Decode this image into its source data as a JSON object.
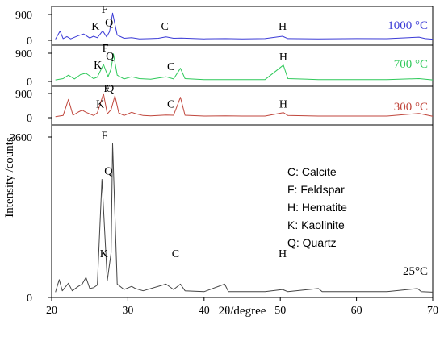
{
  "chart_data": {
    "type": "line",
    "xlabel": "2θ/degree",
    "ylabel": "Intensity /counts",
    "xlim": [
      20,
      70
    ],
    "xticks": [
      "20",
      "30",
      "40",
      "50",
      "60",
      "70"
    ],
    "panels": [
      {
        "name": "1000 °C",
        "color": "#3b3bd6",
        "ylim": [
          0,
          900
        ],
        "yticks": [
          "0",
          "900"
        ],
        "baseline": 35,
        "x": [
          20.5,
          21.1,
          21.5,
          22.0,
          22.5,
          23.5,
          24.2,
          25.0,
          25.5,
          26.0,
          26.7,
          27.2,
          27.6,
          28.0,
          28.6,
          29.5,
          30.5,
          31.5,
          33.0,
          34.0,
          35.0,
          36.0,
          37.0,
          40.0,
          42.8,
          45.0,
          48.0,
          50.3,
          51.0,
          55.0,
          60.0,
          64.0,
          68.2,
          69.0,
          70.0
        ],
        "y": [
          40,
          320,
          60,
          130,
          50,
          160,
          220,
          80,
          140,
          90,
          330,
          120,
          300,
          950,
          180,
          70,
          90,
          50,
          60,
          70,
          120,
          70,
          80,
          50,
          60,
          50,
          60,
          140,
          60,
          50,
          60,
          55,
          110,
          60,
          40
        ],
        "peaks": [
          {
            "label": "Q",
            "x": 26.7
          },
          {
            "label": "F",
            "x": 28.0
          },
          {
            "label": "K",
            "x": 24.7
          },
          {
            "label": "C",
            "x": 34.0
          },
          {
            "label": "H",
            "x": 50.3
          }
        ]
      },
      {
        "name": "700 °C",
        "color": "#2fc95a",
        "ylim": [
          0,
          900
        ],
        "yticks": [
          "0",
          "900"
        ],
        "baseline": 35,
        "x": [
          20.5,
          21.5,
          22.2,
          23.0,
          23.8,
          24.5,
          25.5,
          26.0,
          26.8,
          27.4,
          27.8,
          28.1,
          28.6,
          29.5,
          30.5,
          31.5,
          33.0,
          35.0,
          36.0,
          36.9,
          37.5,
          40.0,
          42.8,
          45.0,
          48.0,
          50.4,
          51.0,
          55.0,
          60.0,
          64.0,
          68.2,
          70.0
        ],
        "y": [
          50,
          90,
          200,
          80,
          220,
          260,
          90,
          140,
          540,
          150,
          400,
          880,
          200,
          80,
          150,
          90,
          70,
          150,
          80,
          420,
          90,
          60,
          60,
          60,
          60,
          520,
          90,
          60,
          60,
          60,
          90,
          50
        ],
        "peaks": [
          {
            "label": "Q",
            "x": 26.8
          },
          {
            "label": "F",
            "x": 28.1
          },
          {
            "label": "K",
            "x": 25.0
          },
          {
            "label": "C",
            "x": 34.8
          },
          {
            "label": "H",
            "x": 50.4
          }
        ]
      },
      {
        "name": "300 °C",
        "color": "#c0463c",
        "ylim": [
          0,
          900
        ],
        "yticks": [
          "0",
          "900"
        ],
        "baseline": 35,
        "x": [
          20.5,
          21.5,
          22.2,
          22.8,
          23.5,
          24.0,
          24.5,
          25.5,
          26.0,
          26.8,
          27.3,
          27.8,
          28.3,
          28.8,
          29.5,
          30.5,
          31.0,
          32.0,
          33.0,
          35.0,
          36.0,
          36.9,
          37.5,
          40.0,
          42.8,
          45.0,
          48.0,
          50.4,
          51.0,
          55.0,
          60.0,
          64.0,
          68.2,
          70.0
        ],
        "y": [
          40,
          80,
          680,
          90,
          210,
          280,
          200,
          80,
          180,
          890,
          140,
          300,
          820,
          180,
          80,
          200,
          150,
          80,
          70,
          100,
          90,
          760,
          90,
          60,
          70,
          60,
          60,
          190,
          80,
          60,
          60,
          60,
          160,
          50
        ],
        "peaks": [
          {
            "label": "Q",
            "x": 26.8
          },
          {
            "label": "F",
            "x": 28.3
          },
          {
            "label": "K",
            "x": 25.3
          },
          {
            "label": "C",
            "x": 34.8
          },
          {
            "label": "H",
            "x": 50.4
          }
        ]
      },
      {
        "name": "25°C",
        "color": "#444444",
        "ylim": [
          0,
          3600
        ],
        "yticks": [
          "0",
          "3600"
        ],
        "baseline": 120,
        "x": [
          20.5,
          21.0,
          21.4,
          22.2,
          22.7,
          23.5,
          24.0,
          24.5,
          25.0,
          25.5,
          26.0,
          26.6,
          27.3,
          27.8,
          28.0,
          28.6,
          29.5,
          30.5,
          31.0,
          32.0,
          35.0,
          36.0,
          36.9,
          37.5,
          40.0,
          42.7,
          43.2,
          45.0,
          48.0,
          50.3,
          51.0,
          55.0,
          55.5,
          60.0,
          64.0,
          68.0,
          68.5,
          70.0
        ],
        "y": [
          120,
          400,
          150,
          320,
          150,
          250,
          300,
          450,
          200,
          220,
          280,
          2650,
          380,
          1000,
          3450,
          300,
          180,
          250,
          200,
          150,
          300,
          180,
          300,
          150,
          130,
          300,
          130,
          130,
          130,
          180,
          130,
          200,
          130,
          130,
          130,
          200,
          130,
          120
        ],
        "peaks": [
          {
            "label": "Q",
            "x": 26.6
          },
          {
            "label": "F",
            "x": 28.0
          },
          {
            "label": "K",
            "x": 25.8
          },
          {
            "label": "C",
            "x": 35.4
          },
          {
            "label": "H",
            "x": 50.3
          }
        ]
      }
    ],
    "legend": {
      "placement": "right-middle",
      "entries": [
        "C: Calcite",
        "F: Feldspar",
        "H: Hematite",
        "K: Kaolinite",
        "Q: Quartz"
      ]
    }
  }
}
